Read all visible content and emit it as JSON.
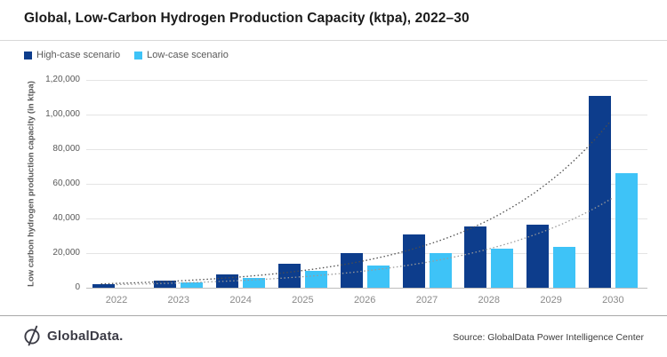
{
  "title": "Global, Low-Carbon Hydrogen Production Capacity (ktpa), 2022–30",
  "chart_data": {
    "type": "bar",
    "title": "Global, Low-Carbon Hydrogen Production Capacity (ktpa), 2022–30",
    "categories": [
      "2022",
      "2023",
      "2024",
      "2025",
      "2026",
      "2027",
      "2028",
      "2029",
      "2030"
    ],
    "series": [
      {
        "name": "High-case scenario",
        "color": "#0d3d8c",
        "values": [
          2000,
          4000,
          7500,
          14000,
          20000,
          31000,
          35500,
          36500,
          111000
        ]
      },
      {
        "name": "Low-case scenario",
        "color": "#3ec3f7",
        "values": [
          0,
          3000,
          5500,
          10000,
          13000,
          20000,
          22500,
          23500,
          66000
        ]
      }
    ],
    "trendlines": [
      {
        "series": "High-case scenario",
        "style": "dotted",
        "color": "#4d4d4d",
        "start_value": 2500,
        "end_value": 98000
      },
      {
        "series": "Low-case scenario",
        "style": "dotted",
        "color": "#9a9a9a",
        "start_value": 1800,
        "end_value": 52000
      }
    ],
    "xlabel": "",
    "ylabel": "Low carbon hydrogen production capacity (in ktpa)",
    "ylim": [
      0,
      120000
    ],
    "ytick_values": [
      120000,
      100000,
      80000,
      60000,
      40000,
      20000,
      0
    ],
    "yticks": [
      "1,20,000",
      "1,00,000",
      "80,000",
      "60,000",
      "40,000",
      "20,000",
      "0"
    ],
    "grid": true,
    "legend_position": "top-left"
  },
  "footer": {
    "brand": "GlobalData.",
    "source": "Source: GlobalData Power Intelligence Center"
  }
}
